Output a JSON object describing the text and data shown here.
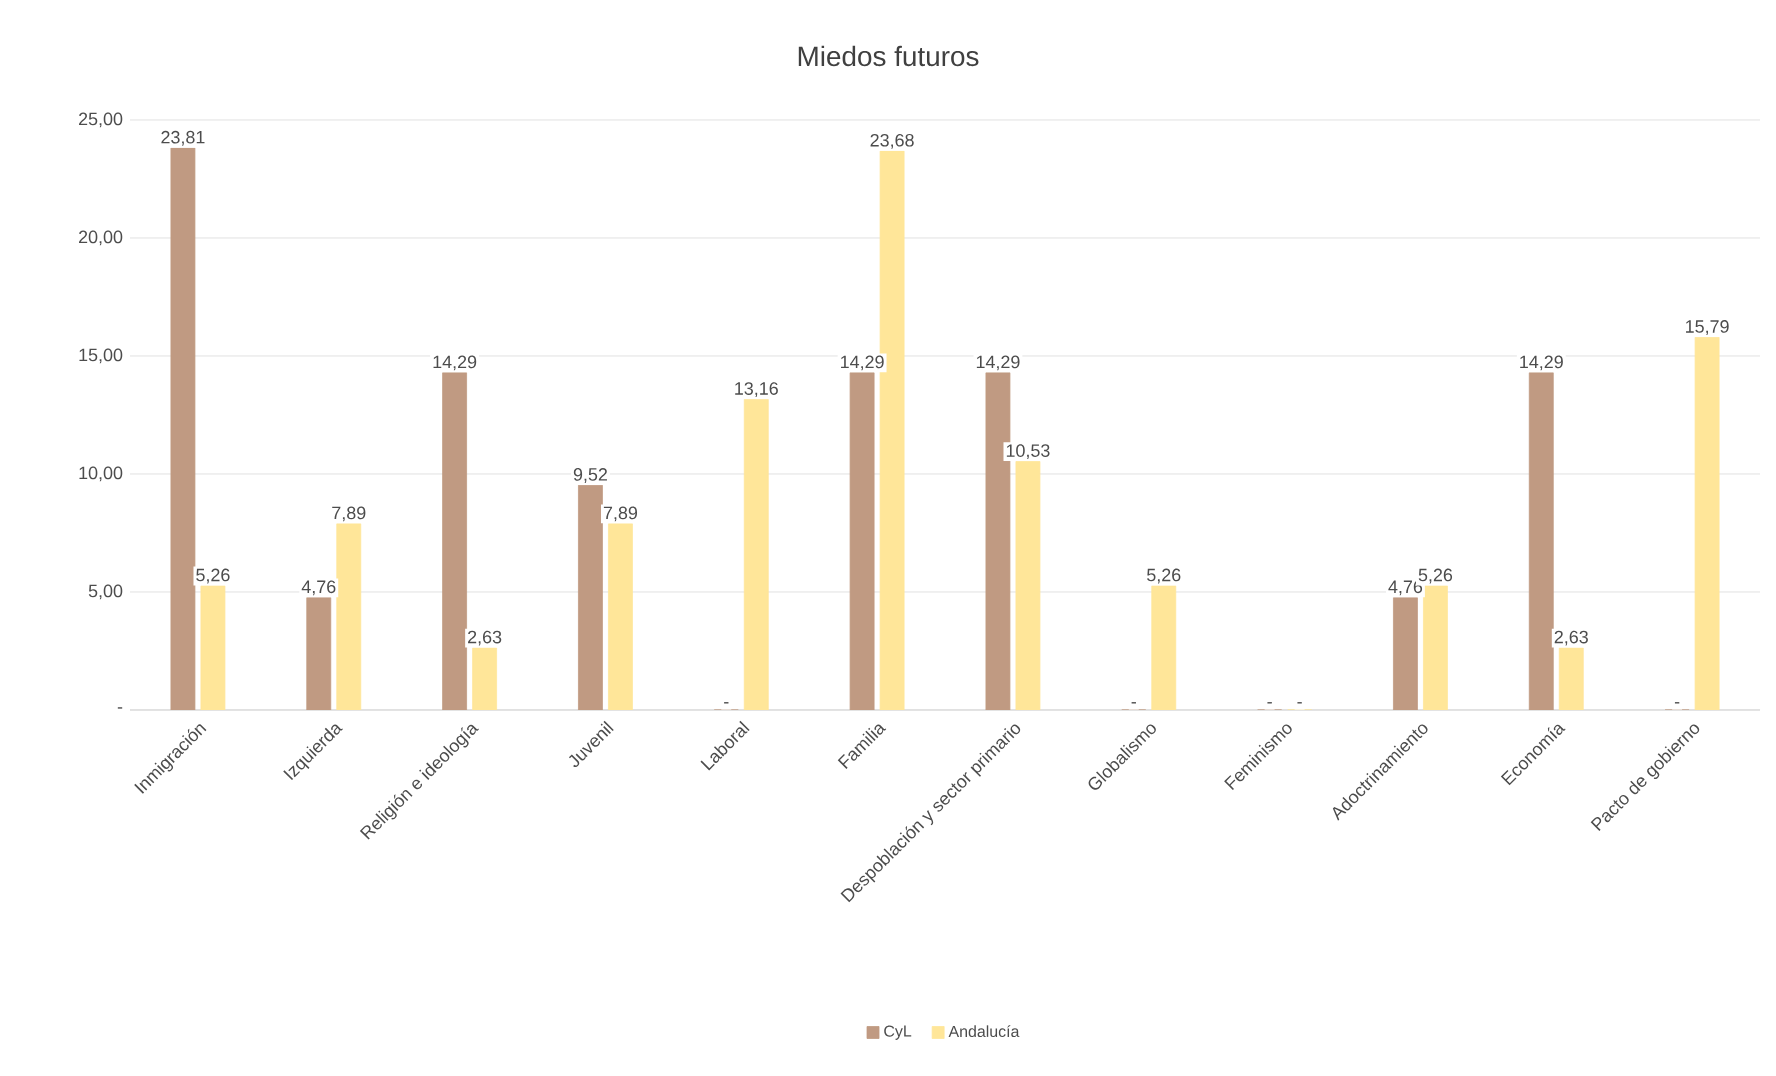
{
  "chart_data": {
    "type": "bar",
    "title": "Miedos futuros",
    "categories": [
      "Inmigración",
      "Izquierda",
      "Religión e ideología",
      "Juvenil",
      "Laboral",
      "Familia",
      "Despoblación y sector primario",
      "Globalismo",
      "Feminismo",
      "Adoctrinamiento",
      "Economía",
      "Pacto de gobierno"
    ],
    "series": [
      {
        "name": "CyL",
        "color": "#c09a82",
        "values": [
          23.81,
          4.76,
          14.29,
          9.52,
          0,
          14.29,
          14.29,
          0,
          0,
          4.76,
          14.29,
          0
        ],
        "value_labels": [
          "23,81",
          "4,76",
          "14,29",
          "9,52",
          "-",
          "14,29",
          "14,29",
          "-",
          "-",
          "4,76",
          "14,29",
          "-"
        ]
      },
      {
        "name": "Andalucía",
        "color": "#ffe699",
        "values": [
          5.26,
          7.89,
          2.63,
          7.89,
          13.16,
          23.68,
          10.53,
          5.26,
          0,
          5.26,
          2.63,
          15.79
        ],
        "value_labels": [
          "5,26",
          "7,89",
          "2,63",
          "7,89",
          "13,16",
          "23,68",
          "10,53",
          "5,26",
          "-",
          "5,26",
          "2,63",
          "15,79"
        ]
      }
    ],
    "ylim": [
      0,
      25
    ],
    "yticks": [
      {
        "value": 0,
        "label": "-"
      },
      {
        "value": 5,
        "label": "5,00"
      },
      {
        "value": 10,
        "label": "10,00"
      },
      {
        "value": 15,
        "label": "15,00"
      },
      {
        "value": 20,
        "label": "20,00"
      },
      {
        "value": 25,
        "label": "25,00"
      }
    ],
    "grid": "y",
    "legend": "bottom"
  }
}
